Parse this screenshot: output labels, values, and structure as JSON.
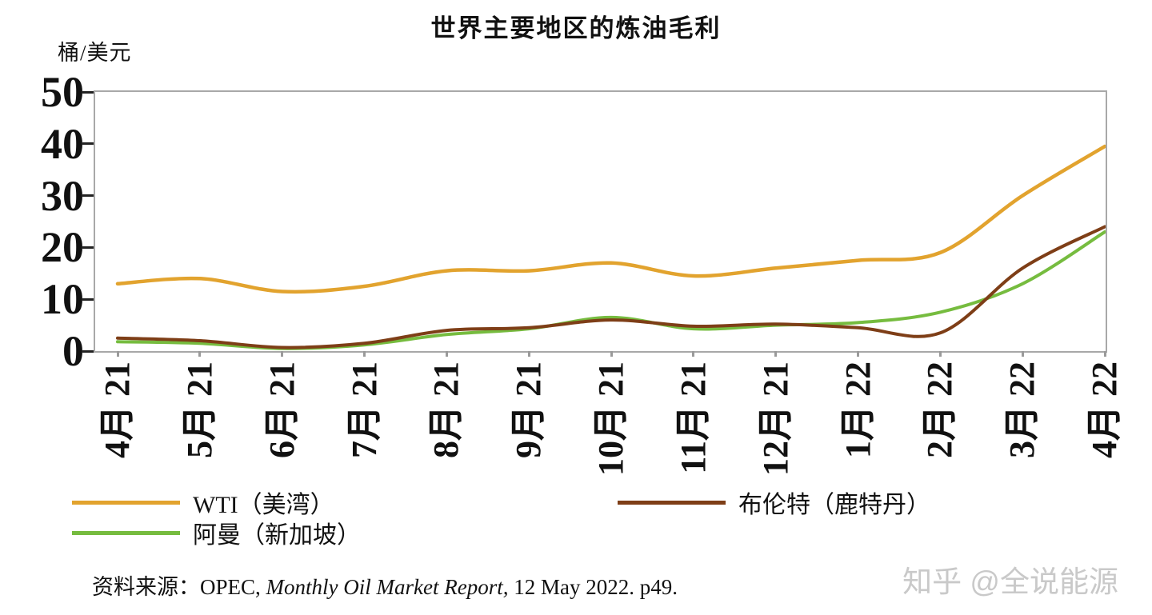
{
  "title": "世界主要地区的炼油毛利",
  "y_unit": "桶/美元",
  "chart_data": {
    "type": "line",
    "categories": [
      "4月 21",
      "5月 21",
      "6月 21",
      "7月 21",
      "8月 21",
      "9月 21",
      "10月 21",
      "11月 21",
      "12月 21",
      "1月 22",
      "2月 22",
      "3月 22",
      "4月 22"
    ],
    "series": [
      {
        "name": "WTI（美湾）",
        "color": "#E2A32E",
        "values": [
          13,
          14,
          11.5,
          12.5,
          15.5,
          15.5,
          17,
          14.5,
          16,
          17.5,
          19,
          30,
          39.5
        ]
      },
      {
        "name": "布伦特（鹿特丹）",
        "color": "#7E3E17",
        "values": [
          2.5,
          2,
          0.7,
          1.5,
          4,
          4.5,
          6,
          4.8,
          5.2,
          4.5,
          3.5,
          16,
          24
        ]
      },
      {
        "name": "阿曼（新加坡）",
        "color": "#76BC3F",
        "values": [
          1.8,
          1.5,
          0.5,
          1.2,
          3.2,
          4.3,
          6.5,
          4.3,
          5,
          5.5,
          7.5,
          13,
          23
        ]
      }
    ],
    "ylim": [
      0,
      50
    ],
    "yticks": [
      0,
      10,
      20,
      30,
      40,
      50
    ],
    "grid": false,
    "legend_position": "bottom",
    "axis_color": "#a8a8a8"
  },
  "source": {
    "prefix": "资料来源：",
    "normal1": "OPEC, ",
    "italic": "Monthly Oil Market Report,",
    "normal2": " 12 May 2022. p49."
  },
  "watermark": "知乎 @全说能源"
}
